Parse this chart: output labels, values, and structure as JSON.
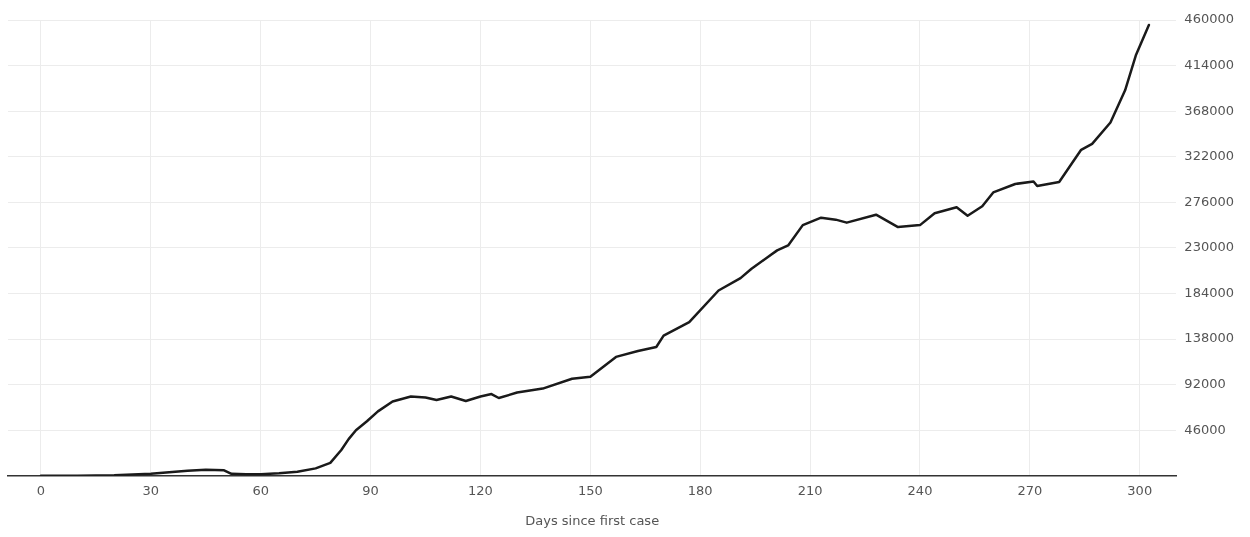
{
  "chart_data": {
    "type": "line",
    "xlabel": "Days since first case",
    "series": [
      {
        "color": "#1a1a1a",
        "x": [
          0,
          10,
          20,
          30,
          35,
          40,
          45,
          50,
          52,
          56,
          60,
          65,
          70,
          75,
          79,
          82,
          84,
          86,
          89,
          92,
          96,
          101,
          105,
          108,
          112,
          116,
          120,
          123,
          125,
          130,
          137,
          145,
          150,
          157,
          163,
          168,
          170,
          177,
          185,
          191,
          194,
          201,
          204,
          208,
          213,
          217,
          220,
          228,
          234,
          240,
          244,
          250,
          253,
          257,
          260,
          266,
          271,
          272,
          278,
          284,
          287,
          292,
          296,
          299,
          302.5
        ],
        "values": [
          0,
          0,
          500,
          2000,
          3500,
          5000,
          6000,
          5500,
          2000,
          1500,
          1500,
          2500,
          4000,
          7500,
          13000,
          26000,
          37000,
          46000,
          55000,
          65000,
          75000,
          80000,
          79000,
          76500,
          80000,
          75500,
          80000,
          82500,
          78500,
          84000,
          88000,
          98000,
          100000,
          120000,
          126000,
          130000,
          141500,
          155000,
          187000,
          199500,
          209000,
          227500,
          232500,
          253000,
          260500,
          258500,
          255500,
          263500,
          251000,
          253000,
          265000,
          271000,
          262500,
          272000,
          286000,
          294500,
          297000,
          292500,
          296500,
          329000,
          335000,
          356500,
          389000,
          425000,
          455000
        ]
      }
    ],
    "xlim": [
      -9,
      310
    ],
    "xticks": [
      0,
      30,
      60,
      90,
      120,
      150,
      180,
      210,
      240,
      270,
      300
    ],
    "ylim": [
      0,
      460000
    ],
    "yticks": [
      46000,
      92000,
      138000,
      184000,
      230000,
      276000,
      322000,
      368000,
      414000,
      460000
    ],
    "grid": true,
    "legend": false,
    "marker": "none",
    "line_style": "solid"
  }
}
